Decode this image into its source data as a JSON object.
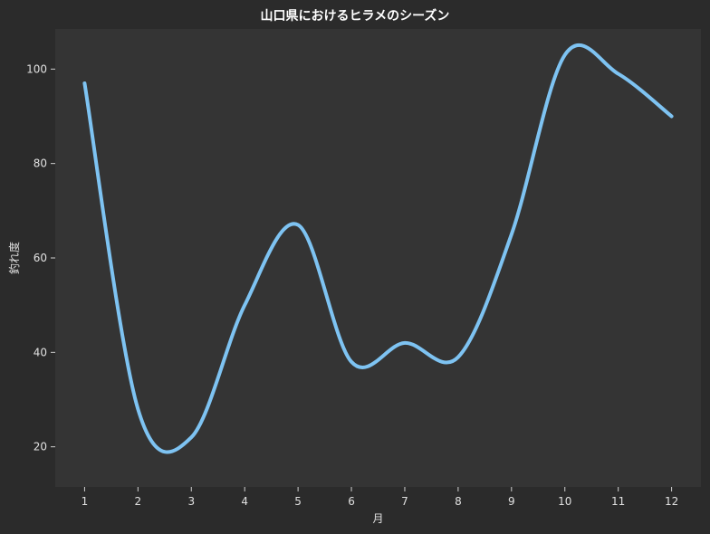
{
  "chart_data": {
    "type": "line",
    "title": "山口県におけるヒラメのシーズン",
    "xlabel": "月",
    "ylabel": "釣れ度",
    "x": [
      1,
      2,
      3,
      4,
      5,
      6,
      7,
      8,
      9,
      10,
      11,
      12
    ],
    "xticks": [
      "1",
      "2",
      "3",
      "4",
      "5",
      "6",
      "7",
      "8",
      "9",
      "10",
      "11",
      "12"
    ],
    "yticks": [
      "20",
      "40",
      "60",
      "80",
      "100"
    ],
    "xlim": [
      0.45,
      12.55
    ],
    "ylim": [
      11.5,
      108.5
    ],
    "series": [
      {
        "values": [
          97,
          28,
          22,
          50,
          67,
          38,
          42,
          39,
          65,
          103,
          99,
          90
        ]
      }
    ],
    "grid": false,
    "colors": {
      "line": "#7ec3f2",
      "background": "#2b2b2b",
      "plot_background": "#343434",
      "text": "#e0e0e0"
    }
  }
}
